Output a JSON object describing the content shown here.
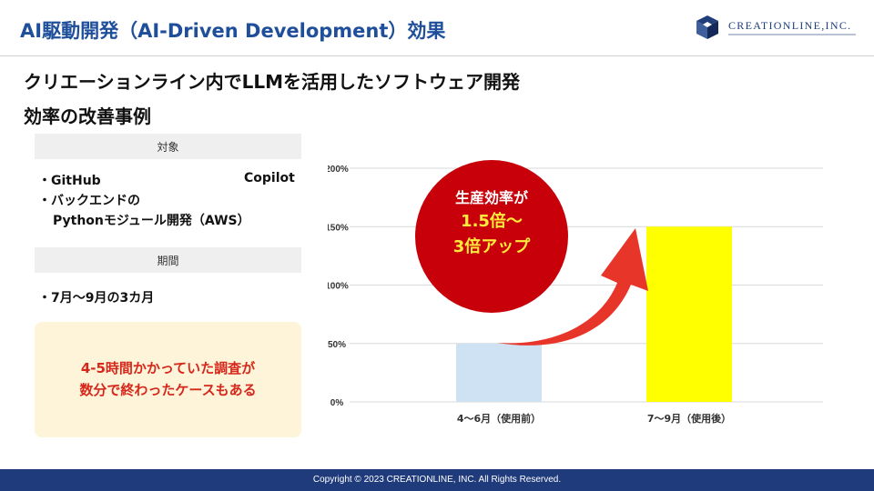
{
  "header": {
    "title": "AI駆動開発（AI-Driven Development）効果",
    "logo_text": "CREATIONLINE,INC."
  },
  "subtitle": {
    "line1": "クリエーションライン内でLLMを活用したソフトウェア開発",
    "line2": "効率の改善事例"
  },
  "target": {
    "label": "対象",
    "bullets": [
      {
        "left": "・GitHub",
        "right": "Copilot"
      },
      {
        "text": "・バックエンドの"
      },
      {
        "text": "Pythonモジュール開発（AWS）"
      }
    ]
  },
  "period": {
    "label": "期間",
    "bullet": "・7月〜9月の3カ月"
  },
  "note": {
    "line1": "4-5時間かかっていた調査が",
    "line2": "数分で終わったケースもある"
  },
  "callout": {
    "line1": "生産効率が",
    "line2": "1.5倍〜",
    "line3": "3倍アップ"
  },
  "colors": {
    "brand_blue": "#1f4f9b",
    "accent_red": "#d6271b",
    "callout_red": "#c8000a",
    "bar_before": "#cfe2f3",
    "bar_after": "#ffff00",
    "footer_bg": "#1f3b7c"
  },
  "chart_data": {
    "type": "bar",
    "categories": [
      "4〜6月（使用前）",
      "7〜9月（使用後）"
    ],
    "values": [
      50,
      150
    ],
    "ylim": [
      0,
      200
    ],
    "yticks": [
      "0%",
      "50%",
      "100%",
      "150%",
      "200%"
    ],
    "ytick_values": [
      0,
      50,
      100,
      150,
      200
    ],
    "grid": true,
    "title": "",
    "xlabel": "",
    "ylabel": ""
  },
  "footer": {
    "text": "Copyright © 2023 CREATIONLINE, INC. All Rights Reserved."
  }
}
